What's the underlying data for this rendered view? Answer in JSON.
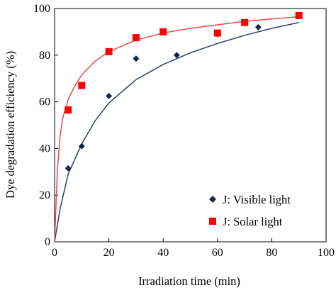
{
  "chart_data": {
    "type": "scatter",
    "title": "",
    "xlabel": "Irradiation  time  (min)",
    "ylabel": "Dye  degradation  efficiency  (%)",
    "xlim": [
      0,
      100
    ],
    "ylim": [
      0,
      100
    ],
    "xticks": [
      0,
      20,
      40,
      60,
      80,
      100
    ],
    "yticks": [
      0,
      20,
      40,
      60,
      80,
      100
    ],
    "grid": false,
    "legend_position": "bottom-right",
    "series": [
      {
        "name": "J:  Visible light",
        "marker": "diamond",
        "color": "#14254f",
        "line_color": "#2b3f6b",
        "points": [
          [
            5,
            31.5
          ],
          [
            10,
            41
          ],
          [
            20,
            62.5
          ],
          [
            30,
            78.5
          ],
          [
            45,
            80
          ],
          [
            60,
            89
          ],
          [
            75,
            92
          ]
        ],
        "fit": [
          [
            0,
            0
          ],
          [
            2,
            14
          ],
          [
            5,
            29
          ],
          [
            10,
            42
          ],
          [
            15,
            52
          ],
          [
            20,
            59.5
          ],
          [
            30,
            69.5
          ],
          [
            40,
            76
          ],
          [
            50,
            81
          ],
          [
            60,
            85
          ],
          [
            70,
            88.5
          ],
          [
            80,
            91.5
          ],
          [
            90,
            94
          ]
        ]
      },
      {
        "name": "J:  Solar light",
        "marker": "square",
        "color": "#ff0000",
        "line_color": "#e84a4a",
        "points": [
          [
            5,
            56.5
          ],
          [
            10,
            67
          ],
          [
            20,
            81.5
          ],
          [
            30,
            87.5
          ],
          [
            40,
            90
          ],
          [
            60,
            89.5
          ],
          [
            70,
            94
          ],
          [
            90,
            97
          ]
        ],
        "fit": [
          [
            0,
            0
          ],
          [
            1,
            30
          ],
          [
            2,
            45
          ],
          [
            3,
            53
          ],
          [
            5,
            61
          ],
          [
            7.5,
            67
          ],
          [
            10,
            71.5
          ],
          [
            15,
            77.5
          ],
          [
            20,
            81.5
          ],
          [
            30,
            86.5
          ],
          [
            40,
            89.5
          ],
          [
            50,
            91.5
          ],
          [
            60,
            93
          ],
          [
            70,
            94.5
          ],
          [
            80,
            95.5
          ],
          [
            90,
            96.5
          ]
        ]
      }
    ]
  }
}
